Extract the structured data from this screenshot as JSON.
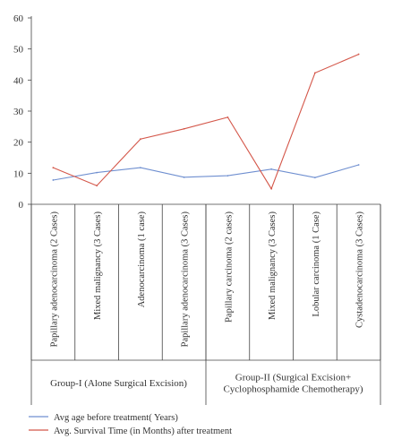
{
  "chart_data": {
    "type": "line",
    "title": "",
    "xlabel": "",
    "ylabel": "",
    "ylim": [
      0,
      60
    ],
    "yticks": [
      0,
      10,
      20,
      30,
      40,
      50,
      60
    ],
    "grid": false,
    "legend_position": "bottom-left",
    "categories": [
      "Papillary adenocarcinoma (2 Cases)",
      "Mixed malignancy (3 Cases)",
      "Adenocarcinoma (1 case)",
      "Papillary adenocarcinoma (3 Cases)",
      "Papillary carcinoma (2 cases)",
      "Mixed malignancy (3 Cases)",
      "Lobular carcinoma (1 Case)",
      "Cystadenocarcinoma (3 Cases)"
    ],
    "groups": [
      {
        "label": "Group-I (Alone Surgical Excision)",
        "lines": [
          "Group-I (Alone Surgical Excision)"
        ],
        "start": 0,
        "end": 3
      },
      {
        "label": "Group-II (Surgical Excision+ Cyclophosphamide Chemotherapy)",
        "lines": [
          "Group-II (Surgical Excision+",
          "Cyclophosphamide Chemotherapy)"
        ],
        "start": 4,
        "end": 7
      }
    ],
    "series": [
      {
        "name": "Avg age before treatment( Years)",
        "color": "#6f8fd0",
        "values": [
          7.8,
          10.2,
          11.8,
          8.7,
          9.2,
          11.3,
          8.6,
          12.7
        ]
      },
      {
        "name": "Avg. Survival Time (in Months) after treatment",
        "color": "#d4574a",
        "values": [
          11.8,
          6.0,
          21.0,
          24.3,
          28.0,
          5.0,
          42.3,
          48.3
        ]
      }
    ]
  }
}
